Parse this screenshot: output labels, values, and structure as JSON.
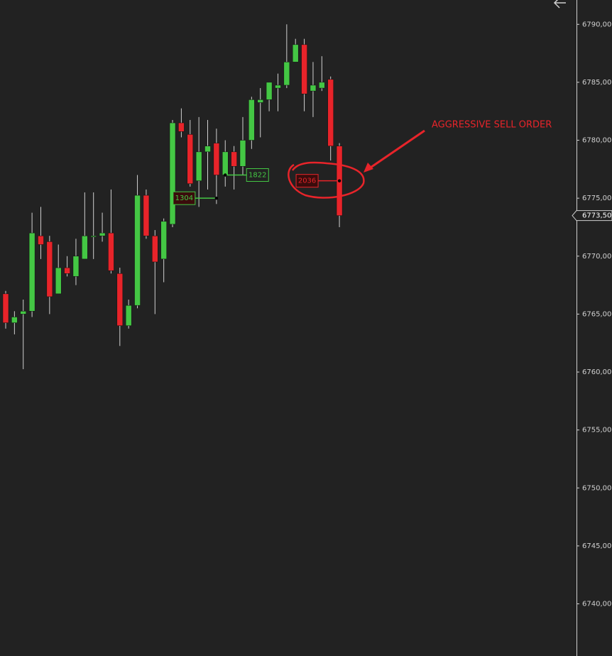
{
  "chart_data": {
    "type": "candlestick",
    "colors": {
      "up": "#44c744",
      "down": "#e8242a",
      "wick": "#d0d0d0",
      "axis": "#d0d0d0"
    },
    "open": [
      6766.75,
      6764.25,
      6765.0,
      6765.25,
      6771.75,
      6771.25,
      6766.75,
      6769.0,
      6768.25,
      6769.75,
      6771.75,
      6771.75,
      6772.0,
      6768.5,
      6764.0,
      6765.75,
      6775.25,
      6771.75,
      6769.75,
      6772.75,
      6781.5,
      6780.5,
      6776.5,
      6779.0,
      6779.75,
      6777.0,
      6779.0,
      6777.75,
      6780.0,
      6783.25,
      6783.5,
      6784.5,
      6784.75,
      6786.75,
      6788.25,
      6784.25,
      6784.5,
      6785.25,
      6779.5
    ],
    "high": [
      6767.0,
      6765.25,
      6766.25,
      6773.75,
      6774.25,
      6771.75,
      6771.0,
      6770.0,
      6771.5,
      6775.5,
      6775.5,
      6773.75,
      6775.75,
      6769.0,
      6766.25,
      6777.0,
      6775.75,
      6772.25,
      6773.25,
      6781.75,
      6782.75,
      6781.75,
      6782.0,
      6781.75,
      6781.0,
      6780.0,
      6779.5,
      6782.0,
      6783.75,
      6784.5,
      6785.0,
      6785.75,
      6790.0,
      6788.75,
      6788.75,
      6786.75,
      6787.25,
      6785.5,
      6779.75
    ],
    "low": [
      6763.75,
      6763.25,
      6760.25,
      6764.75,
      6769.75,
      6765.0,
      6766.75,
      6768.25,
      6767.5,
      6769.75,
      6769.75,
      6771.25,
      6768.5,
      6762.25,
      6763.75,
      6765.5,
      6771.5,
      6765.0,
      6767.75,
      6772.5,
      6780.25,
      6776.0,
      6774.25,
      6775.75,
      6774.5,
      6776.0,
      6775.75,
      6777.0,
      6779.25,
      6780.25,
      6782.5,
      6782.5,
      6784.5,
      6786.75,
      6782.5,
      6782.0,
      6784.25,
      6778.25,
      6772.5
    ],
    "close": [
      6764.25,
      6764.75,
      6765.25,
      6772.0,
      6771.0,
      6766.5,
      6769.0,
      6768.5,
      6770.0,
      6771.75,
      6771.75,
      6772.0,
      6768.75,
      6764.0,
      6765.75,
      6775.25,
      6771.75,
      6769.5,
      6773.0,
      6781.5,
      6780.75,
      6776.25,
      6779.0,
      6779.5,
      6777.0,
      6779.0,
      6777.75,
      6780.0,
      6783.5,
      6783.5,
      6785.0,
      6784.75,
      6786.75,
      6788.25,
      6784.0,
      6784.75,
      6785.0,
      6779.5,
      6773.5
    ],
    "ylim": [
      6735.5,
      6792.1
    ],
    "yticks": [
      {
        "value": 6790,
        "label": "6790,00"
      },
      {
        "value": 6785,
        "label": "6785,00"
      },
      {
        "value": 6780,
        "label": "6780,00"
      },
      {
        "value": 6775,
        "label": "6775,00"
      },
      {
        "value": 6770,
        "label": "6770,00"
      },
      {
        "value": 6765,
        "label": "6765,00"
      },
      {
        "value": 6760,
        "label": "6760,00"
      },
      {
        "value": 6755,
        "label": "6755,00"
      },
      {
        "value": 6750,
        "label": "6750,00"
      },
      {
        "value": 6745,
        "label": "6745,00"
      },
      {
        "value": 6740,
        "label": "6740,00"
      }
    ],
    "last_price": {
      "value": 6773.5,
      "label": "6773,50"
    },
    "volume_markers": [
      {
        "candle": 25,
        "price": 6777.0,
        "volume": 1822,
        "color": "#44c744"
      },
      {
        "candle": 24,
        "price": 6775.0,
        "volume": 1304,
        "color": "#44c744"
      },
      {
        "candle": 38,
        "price": 6776.5,
        "volume": 2036,
        "color": "#e8242a"
      }
    ],
    "annotation": "AGGRESSIVE SELL ORDER"
  }
}
